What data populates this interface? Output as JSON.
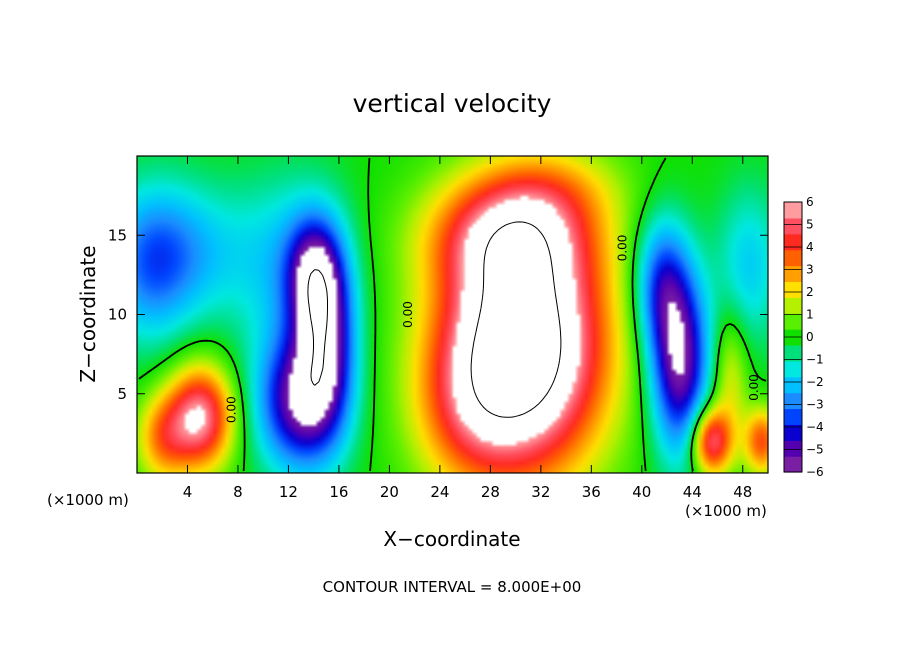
{
  "chart_data": {
    "type": "heatmap",
    "title": "vertical velocity",
    "xlabel": "X−coordinate",
    "ylabel": "Z−coordinate",
    "x_unit_left": "(×1000 m)",
    "x_unit_right": "(×1000 m)",
    "footer": "CONTOUR INTERVAL = 8.000E+00",
    "xlim": [
      0,
      50
    ],
    "ylim": [
      0,
      20
    ],
    "xticks": [
      4,
      8,
      12,
      16,
      20,
      24,
      28,
      32,
      36,
      40,
      44,
      48
    ],
    "xtick_labels": [
      "4",
      "8",
      "12",
      "16",
      "20",
      "24",
      "28",
      "32",
      "36",
      "40",
      "44",
      "48"
    ],
    "yticks": [
      5,
      10,
      15
    ],
    "ytick_labels": [
      "5",
      "10",
      "15"
    ],
    "colorbar": {
      "min": -6,
      "max": 6,
      "tick_values": [
        6,
        5,
        4,
        3,
        2,
        1,
        0,
        -1,
        -2,
        -3,
        -4,
        -5,
        -6
      ],
      "tick_labels": [
        "6",
        "5",
        "4",
        "3",
        "2",
        "1",
        "0",
        "−1",
        "−2",
        "−3",
        "−4",
        "−5",
        "−6"
      ],
      "colors": [
        "#7a1fa3",
        "#5500b0",
        "#0a00d0",
        "#0044ff",
        "#1a8cff",
        "#00c0ff",
        "#00e8e0",
        "#00e07a",
        "#10e000",
        "#58ef00",
        "#b4f000",
        "#ffe000",
        "#ffa000",
        "#ff6000",
        "#ff2a20",
        "#ff4f60",
        "#ff9ca0"
      ]
    },
    "contour_labels": [
      {
        "text": "0.00",
        "x": 7.8,
        "y": 4.0
      },
      {
        "text": "0.00",
        "x": 21.8,
        "y": 10.0
      },
      {
        "text": "0.00",
        "x": 38.8,
        "y": 14.2
      },
      {
        "text": "0.00",
        "x": 49.2,
        "y": 5.4
      }
    ],
    "features": [
      {
        "w": 6.0,
        "x": 5.0,
        "z": 3.5,
        "sx": 1.8,
        "sz": 2.3
      },
      {
        "w": 3.0,
        "x": 2.0,
        "z": 2.2,
        "sx": 1.5,
        "sz": 2.0
      },
      {
        "w": -5.5,
        "x": 12.8,
        "z": 4.5,
        "sx": 2.3,
        "sz": 3.0
      },
      {
        "w": -5.0,
        "x": 15.0,
        "z": 8.5,
        "sx": 1.6,
        "sz": 4.0
      },
      {
        "w": -4.0,
        "x": 14.0,
        "z": 12.5,
        "sx": 1.5,
        "sz": 2.5
      },
      {
        "w": -2.0,
        "x": 12.0,
        "z": 13.0,
        "sx": 3.0,
        "sz": 4.0
      },
      {
        "w": 10.0,
        "x": 30.5,
        "z": 8.0,
        "sx": 4.5,
        "sz": 5.5
      },
      {
        "w": 4.0,
        "x": 29.5,
        "z": 15.0,
        "sx": 4.5,
        "sz": 2.5
      },
      {
        "w": 2.0,
        "x": 26.0,
        "z": 4.0,
        "sx": 3.0,
        "sz": 3.5
      },
      {
        "w": -2.0,
        "x": 4.0,
        "z": 14.0,
        "sx": 3.5,
        "sz": 3.0
      },
      {
        "w": -2.5,
        "x": 1.0,
        "z": 13.0,
        "sx": 2.5,
        "sz": 3.5
      },
      {
        "w": -6.0,
        "x": 43.0,
        "z": 7.0,
        "sx": 1.6,
        "sz": 4.0
      },
      {
        "w": -3.5,
        "x": 41.5,
        "z": 12.0,
        "sx": 1.5,
        "sz": 3.0
      },
      {
        "w": 5.5,
        "x": 45.5,
        "z": 2.0,
        "sx": 1.1,
        "sz": 1.5
      },
      {
        "w": 4.0,
        "x": 49.5,
        "z": 2.0,
        "sx": 1.0,
        "sz": 1.5
      },
      {
        "w": 2.0,
        "x": 47.0,
        "z": 6.0,
        "sx": 1.0,
        "sz": 3.0
      },
      {
        "w": -2.0,
        "x": 48.5,
        "z": 13.0,
        "sx": 1.8,
        "sz": 3.5
      },
      {
        "w": 1.5,
        "x": 33.0,
        "z": 18.0,
        "sx": 4.0,
        "sz": 2.0
      }
    ]
  }
}
